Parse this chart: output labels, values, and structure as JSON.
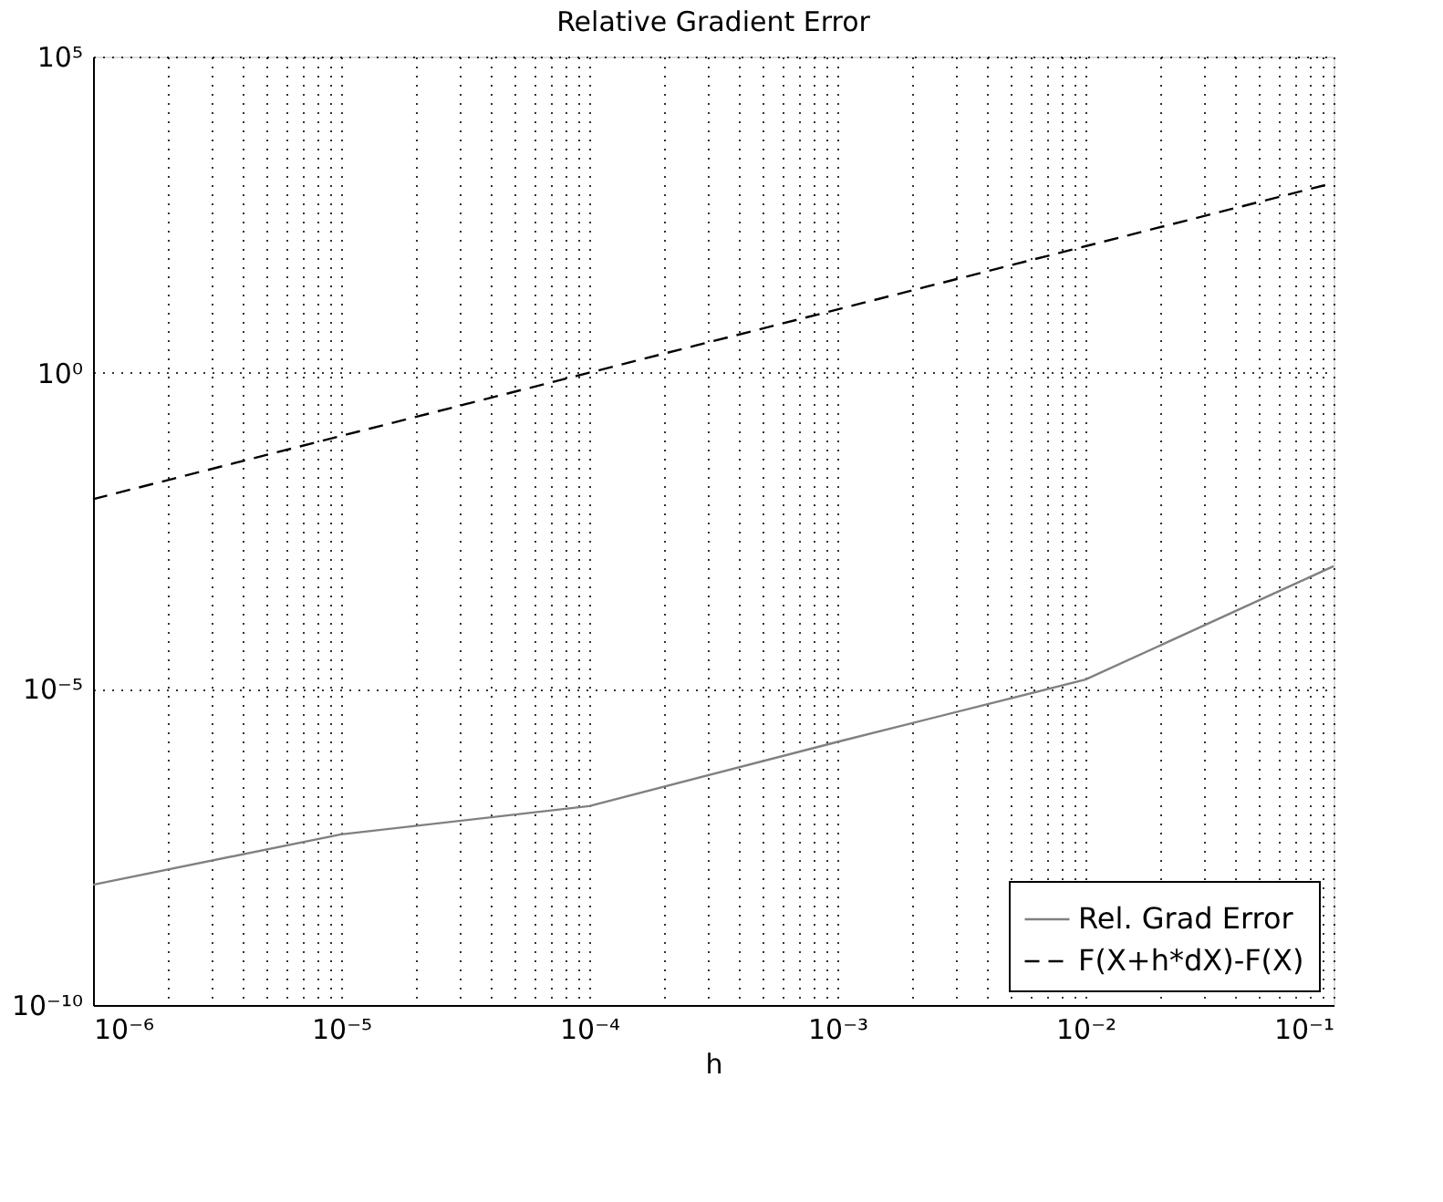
{
  "chart_data": {
    "type": "line",
    "title": "Relative Gradient Error",
    "xlabel": "h",
    "log": "xy",
    "grid": true,
    "legend": "bottom right",
    "xlim": [
      1e-06,
      0.1
    ],
    "ylim": [
      1e-10,
      100000
    ],
    "xticks": [
      {
        "value": 1e-06,
        "label": "10⁻⁶"
      },
      {
        "value": 2e-06,
        "label": null
      },
      {
        "value": 3e-06,
        "label": null
      },
      {
        "value": 4e-06,
        "label": null
      },
      {
        "value": 5e-06,
        "label": null
      },
      {
        "value": 6e-06,
        "label": null
      },
      {
        "value": 7e-06,
        "label": null
      },
      {
        "value": 8e-06,
        "label": null
      },
      {
        "value": 9e-06,
        "label": null
      },
      {
        "value": 1e-05,
        "label": "10⁻⁵"
      },
      {
        "value": 2e-05,
        "label": null
      },
      {
        "value": 3e-05,
        "label": null
      },
      {
        "value": 4e-05,
        "label": null
      },
      {
        "value": 5e-05,
        "label": null
      },
      {
        "value": 6e-05,
        "label": null
      },
      {
        "value": 7e-05,
        "label": null
      },
      {
        "value": 8e-05,
        "label": null
      },
      {
        "value": 9e-05,
        "label": null
      },
      {
        "value": 0.0001,
        "label": "10⁻⁴"
      },
      {
        "value": 0.0002,
        "label": null
      },
      {
        "value": 0.0003,
        "label": null
      },
      {
        "value": 0.0004,
        "label": null
      },
      {
        "value": 0.0005,
        "label": null
      },
      {
        "value": 0.0006,
        "label": null
      },
      {
        "value": 0.0007,
        "label": null
      },
      {
        "value": 0.0008,
        "label": null
      },
      {
        "value": 0.0009,
        "label": null
      },
      {
        "value": 0.001,
        "label": "10⁻³"
      },
      {
        "value": 0.002,
        "label": null
      },
      {
        "value": 0.003,
        "label": null
      },
      {
        "value": 0.004,
        "label": null
      },
      {
        "value": 0.005,
        "label": null
      },
      {
        "value": 0.006,
        "label": null
      },
      {
        "value": 0.007,
        "label": null
      },
      {
        "value": 0.008,
        "label": null
      },
      {
        "value": 0.009,
        "label": null
      },
      {
        "value": 0.01,
        "label": "10⁻²"
      },
      {
        "value": 0.02,
        "label": null
      },
      {
        "value": 0.03,
        "label": null
      },
      {
        "value": 0.04,
        "label": null
      },
      {
        "value": 0.05,
        "label": null
      },
      {
        "value": 0.06,
        "label": null
      },
      {
        "value": 0.07,
        "label": null
      },
      {
        "value": 0.08,
        "label": null
      },
      {
        "value": 0.09,
        "label": null
      },
      {
        "value": 0.1,
        "label": "10⁻¹"
      }
    ],
    "yticks": [
      {
        "value": 1e-10,
        "label": "10⁻¹⁰"
      },
      {
        "value": 1e-05,
        "label": "10⁻⁵"
      },
      {
        "value": 1,
        "label": "10⁰"
      },
      {
        "value": 100000,
        "label": "10⁵"
      }
    ],
    "series": [
      {
        "name": "Rel. Grad Error",
        "color": "#808080",
        "line_style": "solid",
        "x": [
          1e-06,
          1e-05,
          0.0001,
          0.001,
          0.01,
          0.1
        ],
        "values": [
          8e-09,
          5e-08,
          1.4e-07,
          1.45e-06,
          1.4e-05,
          0.00087
        ]
      },
      {
        "name": "F(X+h*dX)-F(X)",
        "color": "#000000",
        "line_style": "dashed",
        "x": [
          1e-06,
          1e-05,
          0.0001,
          0.001,
          0.01,
          0.1
        ],
        "values": [
          0.01,
          0.1,
          1,
          10,
          100,
          1000
        ]
      }
    ]
  }
}
